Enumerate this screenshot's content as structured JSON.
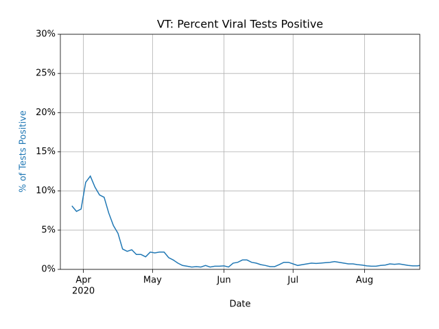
{
  "chart_data": {
    "type": "line",
    "title": "VT: Percent Viral Tests Positive",
    "x_label": "Date",
    "y_label": "% of Tests Positive",
    "y_label_color": "#1f77b4",
    "x_year_label": "2020",
    "xlim": [
      "2020-03-22",
      "2020-08-25"
    ],
    "xticks": [
      {
        "value": "2020-04",
        "label": "Apr"
      },
      {
        "value": "2020-05",
        "label": "May"
      },
      {
        "value": "2020-06",
        "label": "Jun"
      },
      {
        "value": "2020-07",
        "label": "Jul"
      },
      {
        "value": "2020-08",
        "label": "Aug"
      }
    ],
    "ylim": [
      0,
      30
    ],
    "yticks": [
      {
        "value": 0,
        "label": "0%"
      },
      {
        "value": 5,
        "label": "5%"
      },
      {
        "value": 10,
        "label": "10%"
      },
      {
        "value": 15,
        "label": "15%"
      },
      {
        "value": 20,
        "label": "20%"
      },
      {
        "value": 25,
        "label": "25%"
      },
      {
        "value": 30,
        "label": "30%"
      }
    ],
    "grid": true,
    "x": [
      "2020-03-27",
      "2020-03-29",
      "2020-03-31",
      "2020-04-02",
      "2020-04-04",
      "2020-04-06",
      "2020-04-08",
      "2020-04-10",
      "2020-04-12",
      "2020-04-14",
      "2020-04-16",
      "2020-04-18",
      "2020-04-20",
      "2020-04-22",
      "2020-04-24",
      "2020-04-26",
      "2020-04-28",
      "2020-04-30",
      "2020-05-02",
      "2020-05-04",
      "2020-05-06",
      "2020-05-08",
      "2020-05-10",
      "2020-05-12",
      "2020-05-14",
      "2020-05-16",
      "2020-05-18",
      "2020-05-20",
      "2020-05-22",
      "2020-05-24",
      "2020-05-26",
      "2020-05-28",
      "2020-05-30",
      "2020-06-01",
      "2020-06-03",
      "2020-06-05",
      "2020-06-07",
      "2020-06-09",
      "2020-06-11",
      "2020-06-13",
      "2020-06-15",
      "2020-06-17",
      "2020-06-19",
      "2020-06-21",
      "2020-06-23",
      "2020-06-25",
      "2020-06-27",
      "2020-06-29",
      "2020-07-01",
      "2020-07-03",
      "2020-07-05",
      "2020-07-07",
      "2020-07-09",
      "2020-07-11",
      "2020-07-13",
      "2020-07-15",
      "2020-07-17",
      "2020-07-19",
      "2020-07-21",
      "2020-07-23",
      "2020-07-25",
      "2020-07-27",
      "2020-07-29",
      "2020-07-31",
      "2020-08-02",
      "2020-08-04",
      "2020-08-06",
      "2020-08-08",
      "2020-08-10",
      "2020-08-12",
      "2020-08-14",
      "2020-08-16",
      "2020-08-18",
      "2020-08-20",
      "2020-08-22",
      "2020-08-24",
      "2020-08-25"
    ],
    "series": [
      {
        "name": "% of Tests Positive",
        "color": "#1f77b4",
        "values": [
          8.1,
          7.4,
          7.7,
          11.1,
          11.9,
          10.5,
          9.5,
          9.2,
          7.2,
          5.6,
          4.6,
          2.6,
          2.3,
          2.5,
          1.9,
          1.9,
          1.6,
          2.2,
          2.1,
          2.2,
          2.2,
          1.5,
          1.2,
          0.8,
          0.5,
          0.4,
          0.3,
          0.35,
          0.3,
          0.5,
          0.3,
          0.4,
          0.4,
          0.45,
          0.3,
          0.8,
          0.9,
          1.2,
          1.2,
          0.9,
          0.8,
          0.6,
          0.5,
          0.35,
          0.35,
          0.6,
          0.9,
          0.9,
          0.7,
          0.5,
          0.6,
          0.7,
          0.8,
          0.75,
          0.8,
          0.85,
          0.9,
          1.0,
          0.9,
          0.8,
          0.7,
          0.7,
          0.6,
          0.55,
          0.45,
          0.4,
          0.4,
          0.5,
          0.55,
          0.7,
          0.65,
          0.7,
          0.6,
          0.5,
          0.45,
          0.45,
          0.5
        ]
      }
    ]
  }
}
